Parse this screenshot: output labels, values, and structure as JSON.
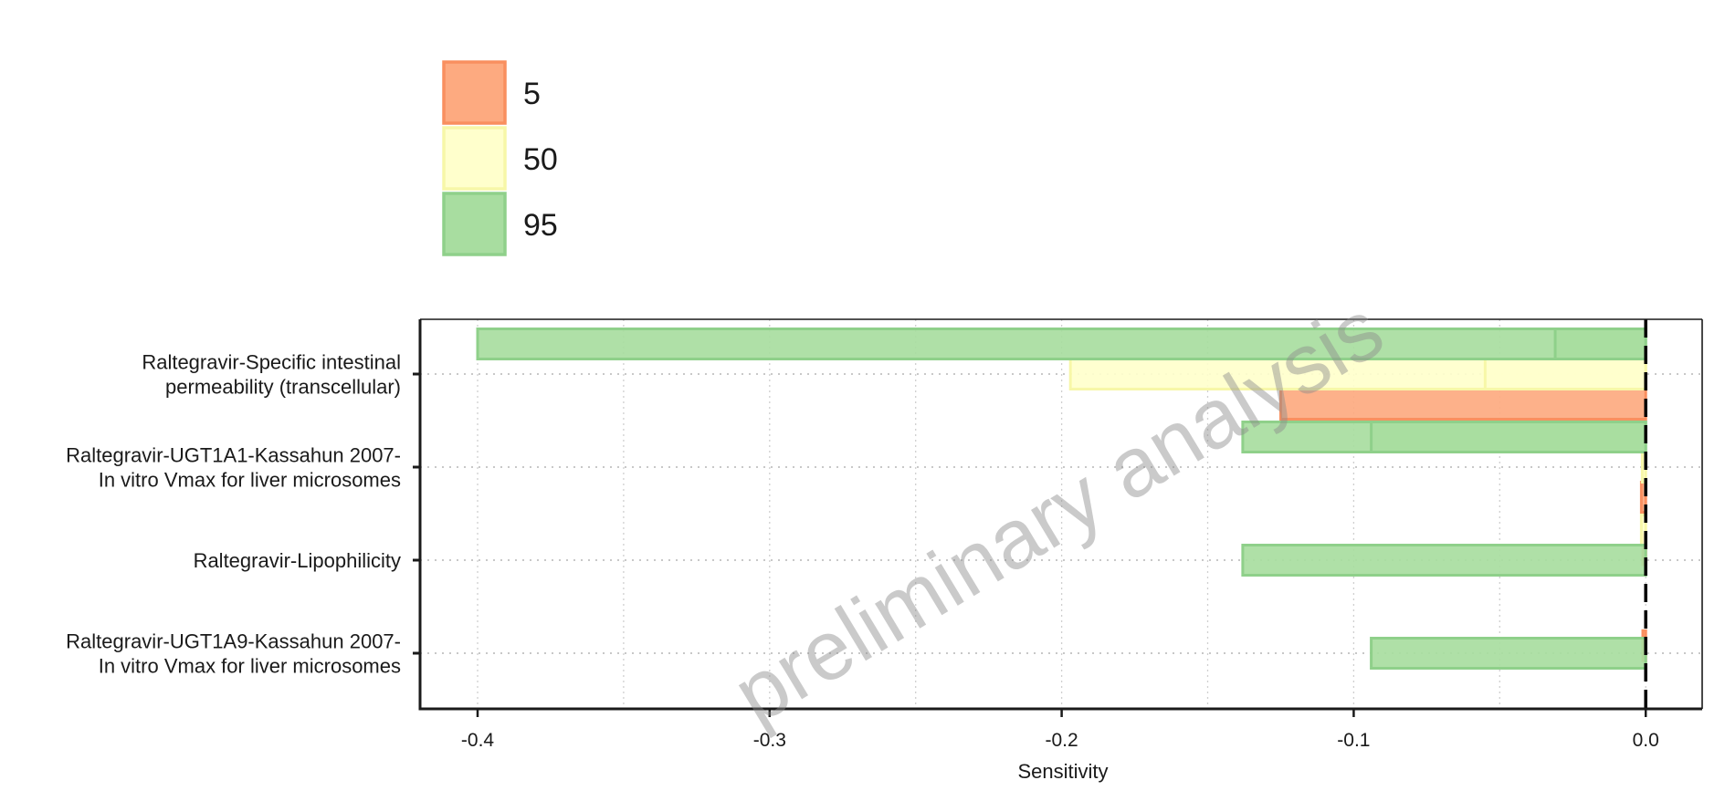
{
  "watermark": "preliminary analysis",
  "chart_data": {
    "type": "bar",
    "orientation": "horizontal",
    "title": "",
    "xlabel": "Sensitivity",
    "ylabel": "",
    "xlim": [
      -0.42,
      0.02
    ],
    "xticks": [
      -0.4,
      -0.3,
      -0.2,
      -0.1,
      0.0
    ],
    "xtick_labels": [
      "-0.4",
      "-0.3",
      "-0.2",
      "-0.1",
      "0.0"
    ],
    "grid": true,
    "legend_position": "top-left",
    "categories": [
      [
        "Raltegravir-Specific intestinal",
        "permeability (transcellular)"
      ],
      [
        "Raltegravir-UGT1A1-Kassahun 2007-",
        "In vitro Vmax for liver microsomes"
      ],
      [
        "Raltegravir-Lipophilicity"
      ],
      [
        "Raltegravir-UGT1A9-Kassahun 2007-",
        "In vitro Vmax for liver microsomes"
      ]
    ],
    "series": [
      {
        "name": "5",
        "fill": "#FDAA80",
        "stroke": "#F98F5F",
        "bars": [
          [
            {
              "value": -0.125,
              "offset": -1
            }
          ],
          [
            {
              "value": -0.0015,
              "offset": -1
            }
          ],
          [
            {
              "value": -0.001,
              "offset": 0.35
            }
          ],
          [
            {
              "value": -0.001,
              "offset": 0.25
            }
          ]
        ]
      },
      {
        "name": "50",
        "fill": "#FFFFCC",
        "stroke": "#F7F7A8",
        "bars": [
          [
            {
              "value": -0.197,
              "offset": 0
            },
            {
              "value": -0.055,
              "offset": 0
            }
          ],
          [
            {
              "value": -0.0012,
              "offset": 0
            }
          ],
          [
            {
              "value": -0.0015,
              "offset": 1
            }
          ],
          []
        ]
      },
      {
        "name": "95",
        "fill": "#A8DDA0",
        "stroke": "#8FD08A",
        "bars": [
          [
            {
              "value": -0.4,
              "offset": 1
            },
            {
              "value": -0.031,
              "offset": 1
            }
          ],
          [
            {
              "value": -0.138,
              "offset": 1
            },
            {
              "value": -0.094,
              "offset": 1
            }
          ],
          [
            {
              "value": -0.138,
              "offset": 0
            }
          ],
          [
            {
              "value": -0.094,
              "offset": 0
            }
          ]
        ]
      }
    ]
  }
}
